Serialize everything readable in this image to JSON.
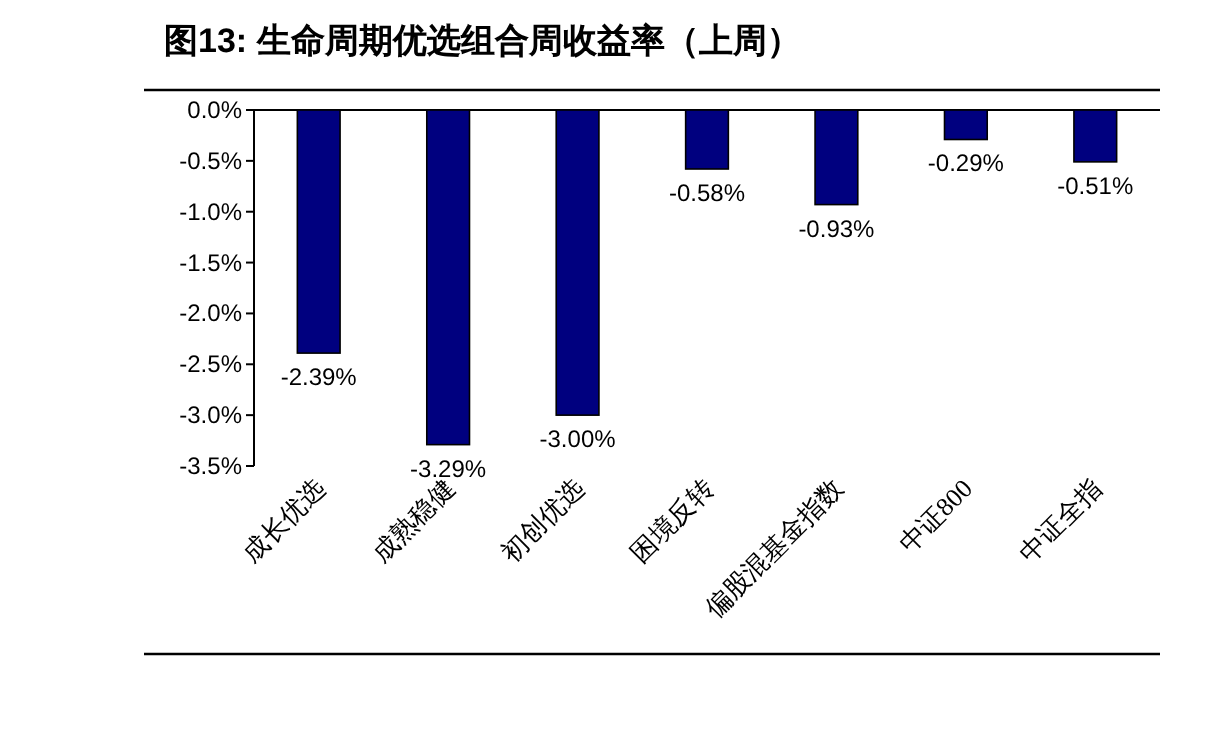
{
  "chart_data": {
    "type": "bar",
    "title": "图13:  生命周期优选组合周收益率（上周）",
    "categories": [
      "成长优选",
      "成熟稳健",
      "初创优选",
      "困境反转",
      "偏股混基金指数",
      "中证800",
      "中证全指"
    ],
    "values": [
      -2.39,
      -3.29,
      -3.0,
      -0.58,
      -0.93,
      -0.29,
      -0.51
    ],
    "value_labels": [
      "-2.39%",
      "-3.29%",
      "-3.00%",
      "-0.58%",
      "-0.93%",
      "-0.29%",
      "-0.51%"
    ],
    "color": "#00007f",
    "ylim": [
      -3.5,
      0
    ],
    "yticks": [
      {
        "value": 0,
        "label": "0.0%"
      },
      {
        "value": -0.5,
        "label": "-0.5%"
      },
      {
        "value": -1,
        "label": "-1.0%"
      },
      {
        "value": -1.5,
        "label": "-1.5%"
      },
      {
        "value": -2,
        "label": "-2.0%"
      },
      {
        "value": -2.5,
        "label": "-2.5%"
      },
      {
        "value": -3,
        "label": "-3.0%"
      },
      {
        "value": -3.5,
        "label": "-3.5%"
      }
    ]
  }
}
